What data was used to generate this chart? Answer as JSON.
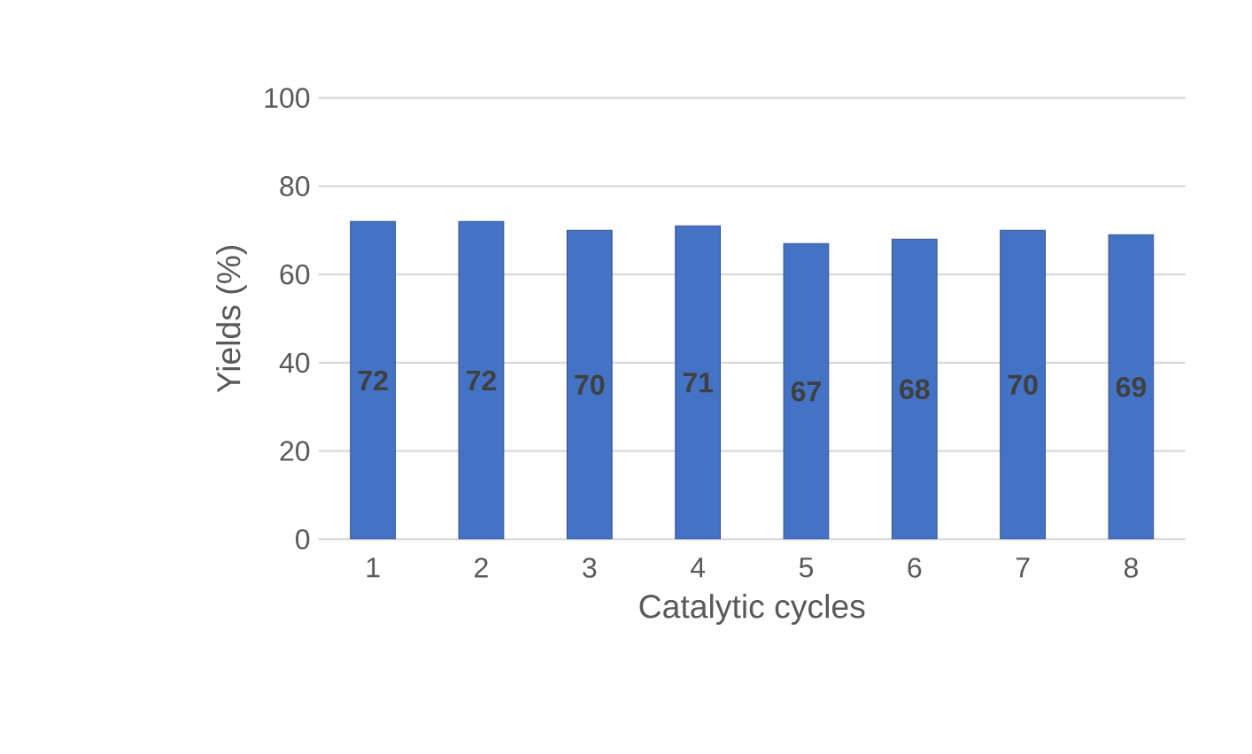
{
  "chart_data": {
    "type": "bar",
    "xlabel": "Catalytic cycles",
    "ylabel": "Yields (%)",
    "categories": [
      "1",
      "2",
      "3",
      "4",
      "5",
      "6",
      "7",
      "8"
    ],
    "values": [
      72,
      72,
      70,
      71,
      67,
      68,
      70,
      69
    ],
    "color": "#4472c4",
    "ylim": [
      0,
      100
    ],
    "yticks": [
      0,
      20,
      40,
      60,
      80,
      100
    ],
    "grid": "y",
    "data_labels": true
  }
}
